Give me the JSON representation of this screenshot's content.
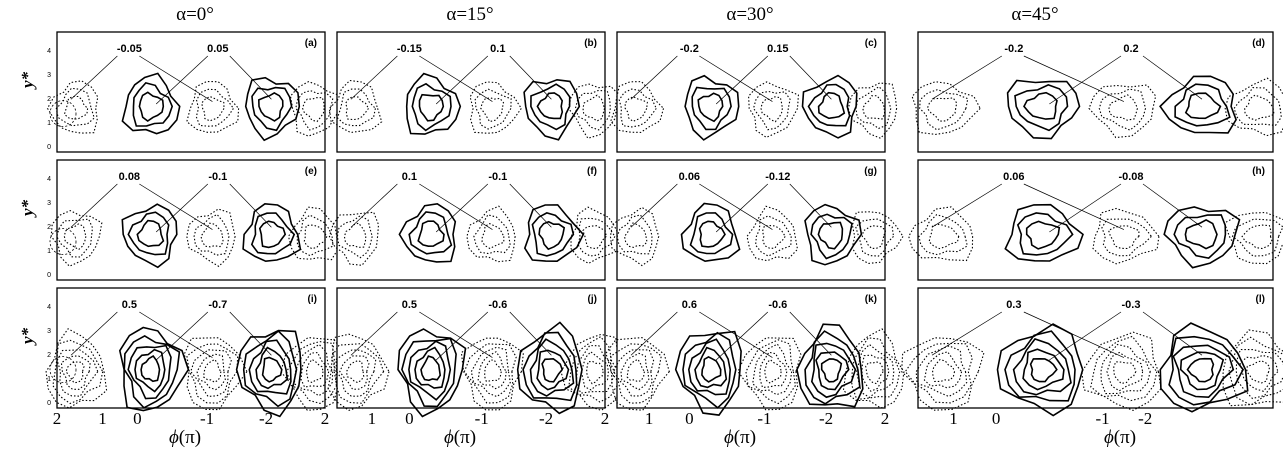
{
  "column_titles": [
    "α=0°",
    "α=15°",
    "α=30°",
    "α=45°"
  ],
  "y_axis_label": "y*",
  "y_ticks": [
    "0",
    "1",
    "2",
    "3",
    "4"
  ],
  "x_axis_title_prefix": "ϕ",
  "x_axis_title_unit": "(π)",
  "x_ticks_cols": [
    [
      "2",
      "1",
      "0",
      "-1",
      "-2",
      "2"
    ],
    [
      "1",
      "0",
      "-1",
      "-2",
      "2"
    ],
    [
      "1",
      "0",
      "-1",
      "-2",
      "2"
    ],
    [
      "1",
      "0",
      "-1",
      "-2"
    ]
  ],
  "panels": [
    {
      "id": "a",
      "label": "(a)",
      "neg": "-0.05",
      "pos": "0.05"
    },
    {
      "id": "b",
      "label": "(b)",
      "neg": "-0.15",
      "pos": "0.1"
    },
    {
      "id": "c",
      "label": "(c)",
      "neg": "-0.2",
      "pos": "0.15"
    },
    {
      "id": "d",
      "label": "(d)",
      "neg": "-0.2",
      "pos": "0.2"
    },
    {
      "id": "e",
      "label": "(e)",
      "pos": "0.08",
      "neg": "-0.1"
    },
    {
      "id": "f",
      "label": "(f)",
      "pos": "0.1",
      "neg": "-0.1"
    },
    {
      "id": "g",
      "label": "(g)",
      "pos": "0.06",
      "neg": "-0.12"
    },
    {
      "id": "h",
      "label": "(h)",
      "pos": "0.06",
      "neg": "-0.08"
    },
    {
      "id": "i",
      "label": "(i)",
      "pos": "0.5",
      "neg": "-0.7"
    },
    {
      "id": "j",
      "label": "(j)",
      "pos": "0.5",
      "neg": "-0.6"
    },
    {
      "id": "k",
      "label": "(k)",
      "pos": "0.6",
      "neg": "-0.6"
    },
    {
      "id": "l",
      "label": "(l)",
      "pos": "0.3",
      "neg": "-0.3"
    }
  ]
}
